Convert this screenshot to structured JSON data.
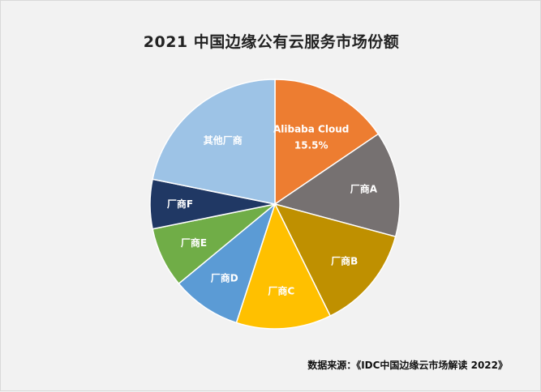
{
  "chart_data": {
    "type": "pie",
    "title": "2021 中国边缘公有云服务市场份额",
    "source_note": "数据来源：《IDC中国边缘云市场解读 2022》",
    "slices": [
      {
        "label": "Alibaba Cloud",
        "value": 15.5,
        "value_label": "15.5%",
        "color": "#ed7d31"
      },
      {
        "label": "厂商A",
        "value": 13.7,
        "value_label": "",
        "color": "#767171"
      },
      {
        "label": "厂商B",
        "value": 13.5,
        "value_label": "",
        "color": "#bf9000"
      },
      {
        "label": "厂商C",
        "value": 12.3,
        "value_label": "",
        "color": "#ffc000"
      },
      {
        "label": "厂商D",
        "value": 9.0,
        "value_label": "",
        "color": "#5b9bd5"
      },
      {
        "label": "厂商E",
        "value": 7.8,
        "value_label": "",
        "color": "#70ad47"
      },
      {
        "label": "厂商F",
        "value": 6.4,
        "value_label": "",
        "color": "#203864"
      },
      {
        "label": "其他厂商",
        "value": 21.8,
        "value_label": "",
        "color": "#9dc3e6"
      }
    ]
  }
}
